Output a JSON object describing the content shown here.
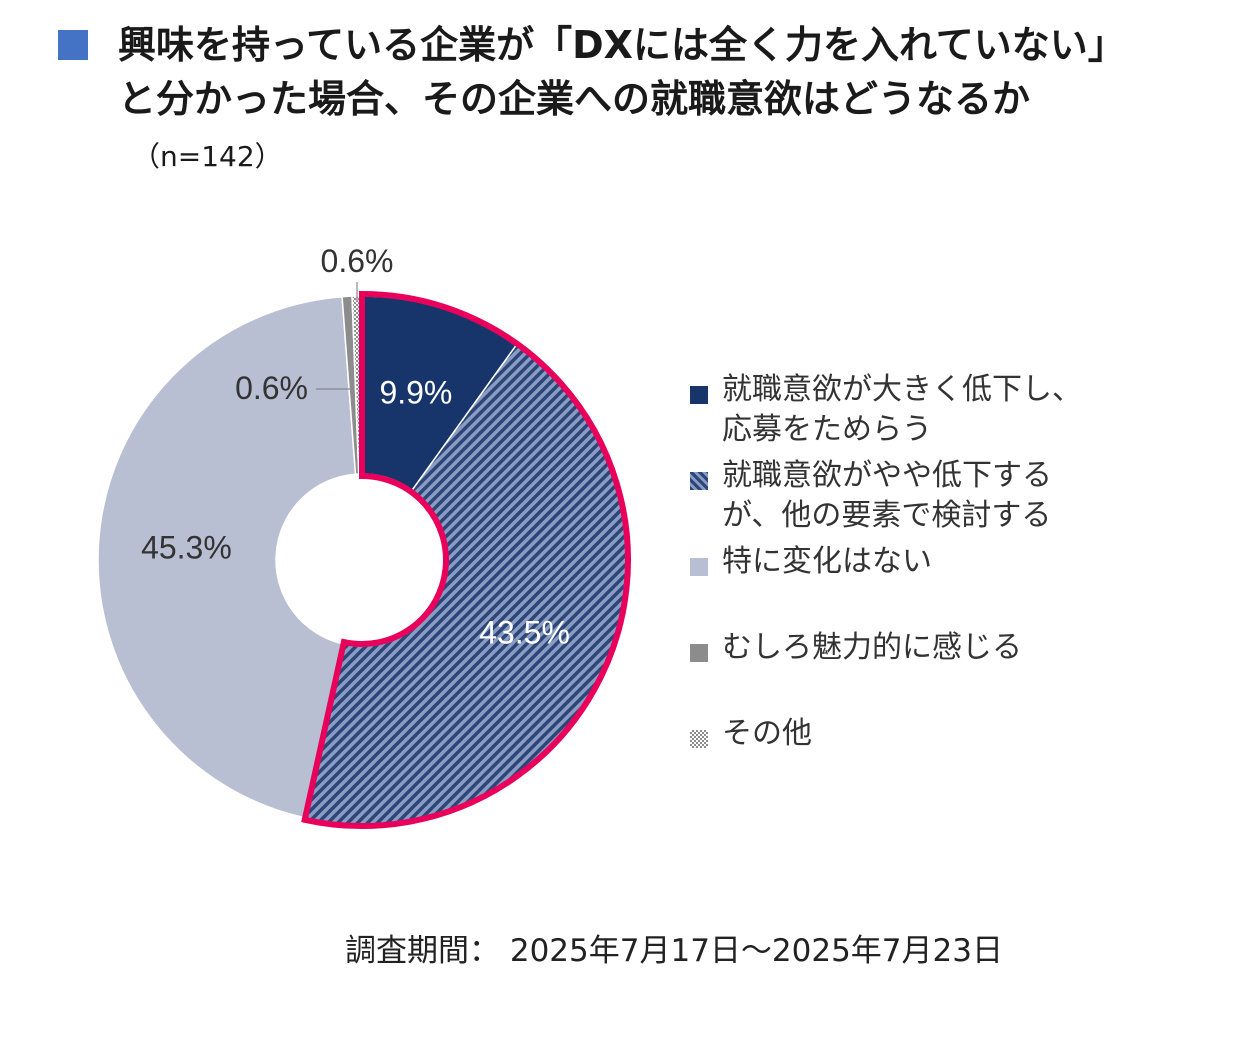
{
  "title": "興味を持っている企業が「DXには全く力を入れていない」と分かった場合、その企業への就職意欲はどうなるか",
  "sample_size": "（n=142）",
  "footer": "調査期間： 2025年7月17日～2025年7月23日",
  "colors": {
    "title_marker": "#4472c4",
    "highlight": "#e8005a",
    "dark_navy": "#17346b",
    "hatched_blue": "#6a7ea8",
    "light_gray_blue": "#b8bfd3",
    "dark_gray": "#8c8c8c",
    "dotted_gray": "#c8c8c8"
  },
  "chart_data": {
    "type": "pie",
    "variant": "donut",
    "start_angle_deg": 0,
    "direction": "clockwise",
    "series": [
      {
        "name": "就職意欲が大きく低下し、応募をためらう",
        "value": 9.9,
        "label": "9.9%",
        "color": "#17346b",
        "pattern": "solid",
        "highlight": true
      },
      {
        "name": "就職意欲がやや低下するが、他の要素で検討する",
        "value": 43.5,
        "label": "43.5%",
        "color": "#6a7ea8",
        "pattern": "hatch",
        "highlight": true
      },
      {
        "name": "特に変化はない",
        "value": 45.3,
        "label": "45.3%",
        "color": "#b8bfd3",
        "pattern": "solid",
        "highlight": false
      },
      {
        "name": "むしろ魅力的に感じる",
        "value": 0.6,
        "label": "0.6%",
        "color": "#8c8c8c",
        "pattern": "solid",
        "highlight": false
      },
      {
        "name": "その他",
        "value": 0.6,
        "label": "0.6%",
        "color": "#c8c8c8",
        "pattern": "dots",
        "highlight": false
      }
    ],
    "legend_position": "right"
  },
  "legend": [
    {
      "label": "就職意欲が大きく低下し、\n応募をためらう"
    },
    {
      "label": "就職意欲がやや低下する\nが、他の要素で検討する"
    },
    {
      "label": "特に変化はない"
    },
    {
      "label": "むしろ魅力的に感じる"
    },
    {
      "label": "その他"
    }
  ]
}
